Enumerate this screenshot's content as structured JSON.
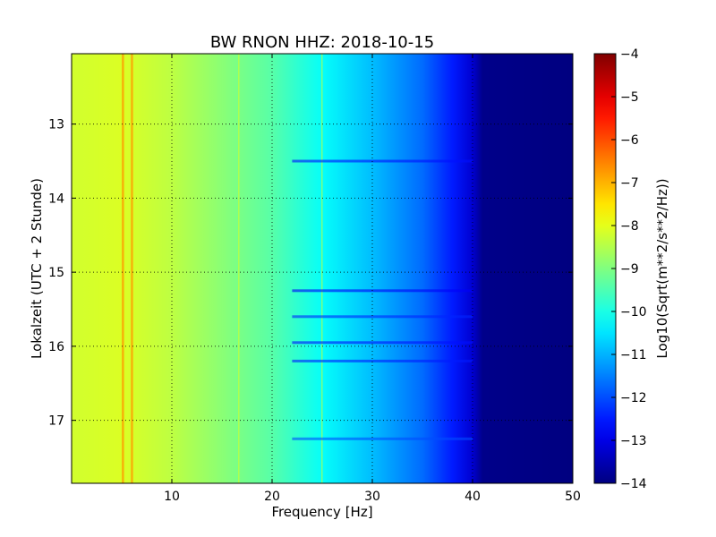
{
  "chart_data": {
    "type": "heatmap",
    "title": "BW RNON HHZ: 2018-10-15",
    "xlabel": "Frequency [Hz]",
    "ylabel": "Lokalzeit (UTC + 2 Stunde)",
    "colorbar_label": "Log10(Sqrt(m**2/s**2/Hz))",
    "xlim": [
      0,
      50
    ],
    "ylim": [
      12.05,
      17.85
    ],
    "y_inverted": true,
    "x_ticks": [
      10,
      20,
      30,
      40,
      50
    ],
    "y_ticks": [
      13,
      14,
      15,
      16,
      17
    ],
    "clim": [
      -14,
      -4
    ],
    "colorbar_ticks": [
      -4,
      -5,
      -6,
      -7,
      -8,
      -9,
      -10,
      -11,
      -12,
      -13,
      -14
    ],
    "colormap": "jet",
    "grid": true,
    "grid_style": "dotted",
    "spectrum_profile": [
      {
        "frequency": 0,
        "value": -8.2
      },
      {
        "frequency": 5,
        "value": -8.1
      },
      {
        "frequency": 10,
        "value": -8.4
      },
      {
        "frequency": 15,
        "value": -8.9
      },
      {
        "frequency": 20,
        "value": -9.4
      },
      {
        "frequency": 25,
        "value": -10.2
      },
      {
        "frequency": 30,
        "value": -10.9
      },
      {
        "frequency": 35,
        "value": -11.7
      },
      {
        "frequency": 38,
        "value": -12.5
      },
      {
        "frequency": 40,
        "value": -13.2
      },
      {
        "frequency": 41,
        "value": -13.9
      },
      {
        "frequency": 50,
        "value": -14.0
      }
    ],
    "narrowband_lines_hz": [
      5.1,
      6.0,
      16.7,
      25.0
    ],
    "broadband_bands": [
      {
        "time": 13.5,
        "value": -12.6
      },
      {
        "time": 15.25,
        "value": -12.8
      },
      {
        "time": 15.6,
        "value": -12.4
      },
      {
        "time": 15.95,
        "value": -12.6
      },
      {
        "time": 16.2,
        "value": -12.5
      },
      {
        "time": 17.25,
        "value": -12.0
      }
    ]
  }
}
